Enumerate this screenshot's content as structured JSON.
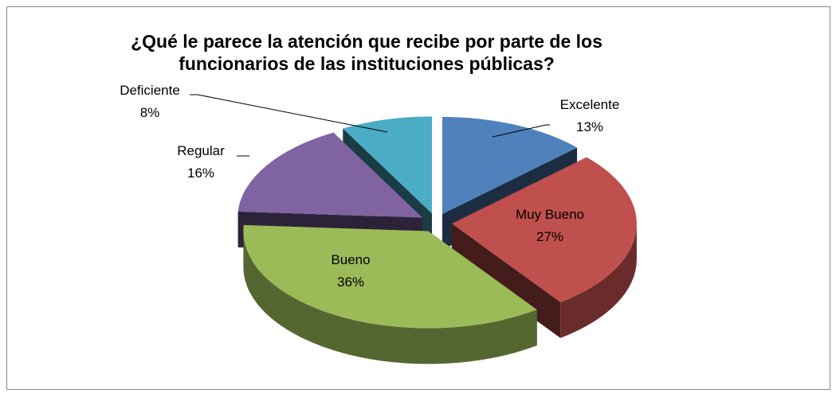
{
  "chart_data": {
    "type": "pie3d",
    "title": "¿Qué le parece la atención que recibe por parte de los funcionarios de las instituciones públicas?",
    "categories": [
      "Excelente",
      "Muy Bueno",
      "Bueno",
      "Regular",
      "Deficiente"
    ],
    "values": [
      13,
      27,
      36,
      16,
      8
    ],
    "value_labels": [
      "13%",
      "27%",
      "36%",
      "16%",
      "8%"
    ],
    "colors": [
      "#4f81bd",
      "#c0504d",
      "#9bbb59",
      "#8064a2",
      "#4bacc6"
    ]
  }
}
